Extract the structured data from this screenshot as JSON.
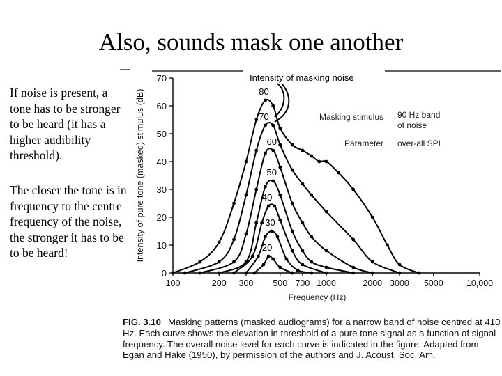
{
  "slide": {
    "title": "Also, sounds mask one another",
    "paragraphs": [
      "If noise is present, a tone has to be stronger to be heard (it has a higher audibility threshold).",
      "The closer the tone is in frequency to the centre frequency of the noise, the stronger it has to be to be heard!"
    ]
  },
  "caption": {
    "label": "FIG. 3.10",
    "text": "Masking patterns (masked audiograms) for a narrow band of noise centred at 410 Hz. Each curve shows the elevation in threshold of a pure tone signal as a function of signal frequency. The overall noise level for each curve is indicated in the figure. Adapted from Egan and Hake (1950), by permission of the authors and J. Acoust. Soc. Am."
  },
  "chart_data": {
    "type": "line",
    "xlabel": "Frequency (Hz)",
    "ylabel": "Intensity of pure tone (masked) stimulus (dB)",
    "x_scale": "log",
    "xlim": [
      100,
      10000
    ],
    "ylim": [
      0,
      70
    ],
    "x_ticks": [
      100,
      200,
      300,
      500,
      700,
      1000,
      2000,
      3000,
      5000,
      10000
    ],
    "x_tick_labels": [
      "100",
      "200",
      "300",
      "500",
      "700",
      "1000",
      "2000",
      "3000",
      "5000",
      "10,000"
    ],
    "y_ticks": [
      0,
      10,
      20,
      30,
      40,
      50,
      60,
      70
    ],
    "annotations": {
      "masking_label": "Intensity of masking noise",
      "stimulus_key": "Masking stimulus",
      "stimulus_value_1": "90 Hz band",
      "stimulus_value_2": "of noise",
      "parameter_key": "Parameter",
      "parameter_value": "over-all SPL"
    },
    "series": [
      {
        "name": "80",
        "points": [
          [
            100,
            0
          ],
          [
            150,
            4
          ],
          [
            200,
            11
          ],
          [
            250,
            25
          ],
          [
            300,
            40
          ],
          [
            350,
            55
          ],
          [
            400,
            62
          ],
          [
            450,
            60
          ],
          [
            500,
            52
          ],
          [
            600,
            46
          ],
          [
            700,
            44
          ],
          [
            800,
            42
          ],
          [
            900,
            40
          ],
          [
            1000,
            40
          ],
          [
            1200,
            36
          ],
          [
            1500,
            30
          ],
          [
            2000,
            20
          ],
          [
            2500,
            10
          ],
          [
            3000,
            3
          ],
          [
            4000,
            0
          ]
        ]
      },
      {
        "name": "70",
        "points": [
          [
            120,
            0
          ],
          [
            200,
            4
          ],
          [
            250,
            12
          ],
          [
            300,
            28
          ],
          [
            350,
            44
          ],
          [
            400,
            53
          ],
          [
            450,
            53
          ],
          [
            500,
            46
          ],
          [
            600,
            37
          ],
          [
            700,
            32
          ],
          [
            800,
            28
          ],
          [
            1000,
            22
          ],
          [
            1500,
            12
          ],
          [
            2000,
            4
          ],
          [
            3000,
            0
          ]
        ]
      },
      {
        "name": "60",
        "points": [
          [
            150,
            0
          ],
          [
            250,
            4
          ],
          [
            300,
            14
          ],
          [
            350,
            30
          ],
          [
            400,
            43
          ],
          [
            450,
            44
          ],
          [
            500,
            38
          ],
          [
            600,
            25
          ],
          [
            700,
            18
          ],
          [
            800,
            13
          ],
          [
            1000,
            8
          ],
          [
            1500,
            2
          ],
          [
            2000,
            0
          ]
        ]
      },
      {
        "name": "50",
        "points": [
          [
            200,
            0
          ],
          [
            300,
            4
          ],
          [
            350,
            18
          ],
          [
            400,
            31
          ],
          [
            450,
            33
          ],
          [
            500,
            28
          ],
          [
            600,
            15
          ],
          [
            700,
            8
          ],
          [
            800,
            4
          ],
          [
            1000,
            2
          ],
          [
            1500,
            0
          ]
        ]
      },
      {
        "name": "40",
        "points": [
          [
            250,
            0
          ],
          [
            330,
            6
          ],
          [
            380,
            18
          ],
          [
            420,
            24
          ],
          [
            460,
            24
          ],
          [
            500,
            19
          ],
          [
            600,
            8
          ],
          [
            700,
            3
          ],
          [
            1000,
            0
          ]
        ]
      },
      {
        "name": "30",
        "points": [
          [
            300,
            0
          ],
          [
            360,
            6
          ],
          [
            400,
            13
          ],
          [
            440,
            15
          ],
          [
            480,
            13
          ],
          [
            550,
            5
          ],
          [
            650,
            1
          ],
          [
            800,
            0
          ]
        ]
      },
      {
        "name": "20",
        "points": [
          [
            340,
            0
          ],
          [
            390,
            3
          ],
          [
            420,
            6
          ],
          [
            450,
            5
          ],
          [
            500,
            2
          ],
          [
            600,
            0
          ]
        ]
      }
    ]
  }
}
